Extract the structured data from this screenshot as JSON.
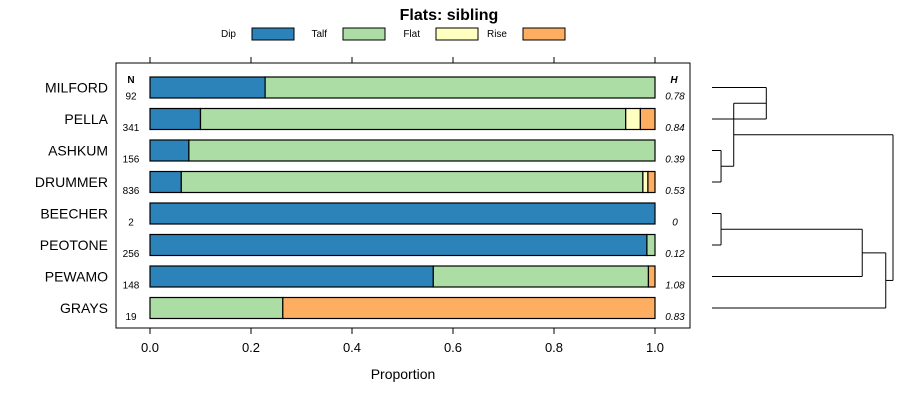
{
  "chart_data": {
    "type": "bar",
    "orientation": "horizontal",
    "stacked": true,
    "title": "Flats: sibling",
    "xlabel": "Proportion",
    "ylabel": "",
    "xlim": [
      0,
      1
    ],
    "xticks": [
      "0.0",
      "0.2",
      "0.4",
      "0.6",
      "0.8",
      "1.0"
    ],
    "n_header": "N",
    "h_header": "H",
    "legend_position": "top",
    "series_names": [
      "Dip",
      "Talf",
      "Flat",
      "Rise"
    ],
    "series_colors": [
      "#2b83ba",
      "#abdda4",
      "#ffffbf",
      "#fdae61"
    ],
    "categories": [
      "MILFORD",
      "PELLA",
      "ASHKUM",
      "DRUMMER",
      "BEECHER",
      "PEOTONE",
      "PEWAMO",
      "GRAYS"
    ],
    "n_values": [
      "92",
      "341",
      "156",
      "836",
      "2",
      "256",
      "148",
      "19"
    ],
    "h_values": [
      "0.78",
      "0.84",
      "0.39",
      "0.53",
      "0",
      "0.12",
      "1.08",
      "0.83"
    ],
    "series": [
      {
        "name": "Dip",
        "values": [
          0.228,
          0.1,
          0.077,
          0.062,
          1.0,
          0.984,
          0.561,
          0.0
        ]
      },
      {
        "name": "Talf",
        "values": [
          0.772,
          0.842,
          0.923,
          0.914,
          0.0,
          0.016,
          0.426,
          0.263
        ]
      },
      {
        "name": "Flat",
        "values": [
          0.0,
          0.029,
          0.0,
          0.01,
          0.0,
          0.0,
          0.0,
          0.0
        ]
      },
      {
        "name": "Rise",
        "values": [
          0.0,
          0.029,
          0.0,
          0.014,
          0.0,
          0.0,
          0.013,
          0.737
        ]
      }
    ],
    "dendrogram": {
      "description": "hierarchical clustering of rows",
      "merges": [
        {
          "id": "m1",
          "rows": [
            "MILFORD",
            "PELLA"
          ],
          "height": 0.3
        },
        {
          "id": "m2",
          "rows": [
            "ASHKUM",
            "DRUMMER"
          ],
          "height": 0.05
        },
        {
          "id": "m3",
          "children": [
            "m1",
            "m2"
          ],
          "height": 0.12
        },
        {
          "id": "m4",
          "rows": [
            "BEECHER",
            "PEOTONE"
          ],
          "height": 0.05
        },
        {
          "id": "m5",
          "children": [
            "m4",
            "PEWAMO"
          ],
          "height": 0.83
        },
        {
          "id": "m6",
          "children": [
            "m5",
            "GRAYS"
          ],
          "height": 0.96
        },
        {
          "id": "m7",
          "children": [
            "m3",
            "m6"
          ],
          "height": 1.0
        }
      ]
    }
  }
}
